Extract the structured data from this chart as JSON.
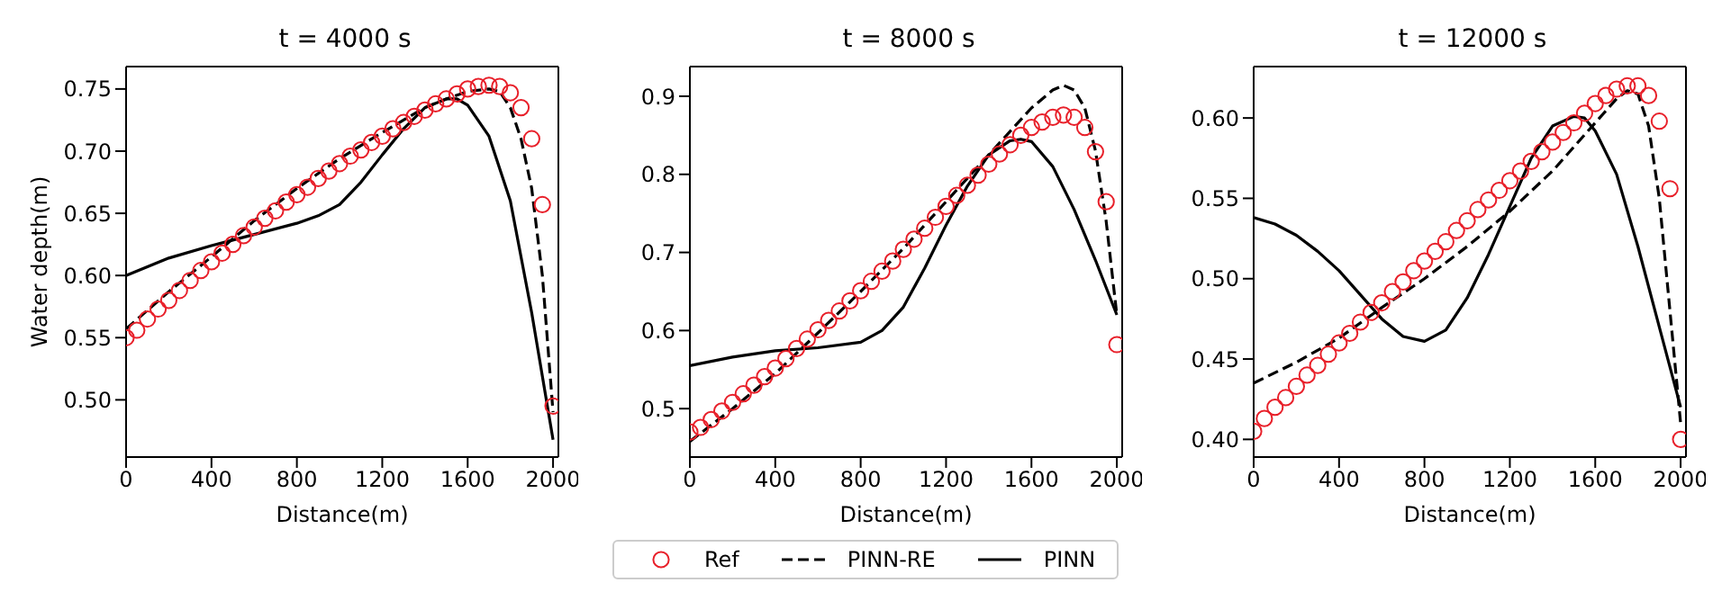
{
  "chart_data": [
    {
      "type": "line",
      "title": "t = 4000 s",
      "xlabel": "Distance(m)",
      "ylabel": "Water depth(m)",
      "xlim": [
        0,
        2025
      ],
      "xticks": [
        0,
        400,
        800,
        1200,
        1600,
        2000
      ],
      "ylim": [
        0.454,
        0.768
      ],
      "yticks": [
        {
          "value": 0.5,
          "label": "0.50"
        },
        {
          "value": 0.55,
          "label": "0.55"
        },
        {
          "value": 0.6,
          "label": "0.60"
        },
        {
          "value": 0.65,
          "label": "0.65"
        },
        {
          "value": 0.7,
          "label": "0.70"
        },
        {
          "value": 0.75,
          "label": "0.75"
        }
      ],
      "grid": false,
      "legend": "bottom",
      "series": [
        {
          "name": "Ref",
          "type": "scatter",
          "marker": "circle",
          "color": "#e8202a",
          "x": [
            0,
            50,
            100,
            150,
            200,
            250,
            300,
            350,
            400,
            450,
            500,
            550,
            600,
            650,
            700,
            750,
            800,
            850,
            900,
            950,
            1000,
            1050,
            1100,
            1150,
            1200,
            1250,
            1300,
            1350,
            1400,
            1450,
            1500,
            1550,
            1600,
            1650,
            1700,
            1750,
            1800,
            1850,
            1900,
            1950,
            2000
          ],
          "values": [
            0.55,
            0.556,
            0.565,
            0.573,
            0.58,
            0.588,
            0.596,
            0.604,
            0.611,
            0.618,
            0.625,
            0.632,
            0.639,
            0.646,
            0.652,
            0.659,
            0.665,
            0.671,
            0.678,
            0.684,
            0.69,
            0.696,
            0.701,
            0.707,
            0.712,
            0.718,
            0.723,
            0.728,
            0.733,
            0.738,
            0.742,
            0.746,
            0.75,
            0.752,
            0.753,
            0.752,
            0.747,
            0.735,
            0.71,
            0.657,
            0.495
          ]
        },
        {
          "name": "PINN-RE",
          "type": "line",
          "line_style": "dashed",
          "marker": "none",
          "color": "#000000",
          "x": [
            0,
            200,
            400,
            600,
            800,
            1000,
            1200,
            1400,
            1500,
            1600,
            1700,
            1750,
            1800,
            1850,
            1900,
            1950,
            2000
          ],
          "values": [
            0.557,
            0.587,
            0.615,
            0.644,
            0.67,
            0.694,
            0.715,
            0.735,
            0.742,
            0.748,
            0.75,
            0.748,
            0.735,
            0.71,
            0.67,
            0.6,
            0.49
          ]
        },
        {
          "name": "PINN",
          "type": "line",
          "line_style": "solid",
          "marker": "none",
          "color": "#000000",
          "x": [
            0,
            200,
            400,
            600,
            800,
            900,
            1000,
            1100,
            1200,
            1300,
            1400,
            1500,
            1550,
            1600,
            1700,
            1800,
            1900,
            2000
          ],
          "values": [
            0.6,
            0.614,
            0.624,
            0.633,
            0.642,
            0.648,
            0.657,
            0.675,
            0.697,
            0.718,
            0.735,
            0.742,
            0.742,
            0.737,
            0.712,
            0.66,
            0.57,
            0.468
          ]
        }
      ]
    },
    {
      "type": "line",
      "title": "t = 8000 s",
      "xlabel": "Distance(m)",
      "xlim": [
        0,
        2025
      ],
      "xticks": [
        0,
        400,
        800,
        1200,
        1600,
        2000
      ],
      "ylim": [
        0.438,
        0.938
      ],
      "yticks": [
        0.5,
        0.6,
        0.7,
        0.8,
        0.9
      ],
      "grid": false,
      "series": [
        {
          "type": "scatter",
          "marker": "circle",
          "color": "#e8202a",
          "x": [
            0,
            50,
            100,
            150,
            200,
            250,
            300,
            350,
            400,
            450,
            500,
            550,
            600,
            650,
            700,
            750,
            800,
            850,
            900,
            950,
            1000,
            1050,
            1100,
            1150,
            1200,
            1250,
            1300,
            1350,
            1400,
            1450,
            1500,
            1550,
            1600,
            1650,
            1700,
            1750,
            1800,
            1850,
            1900,
            1950,
            2000
          ],
          "values": [
            0.47,
            0.476,
            0.486,
            0.497,
            0.508,
            0.519,
            0.53,
            0.541,
            0.552,
            0.564,
            0.577,
            0.589,
            0.601,
            0.613,
            0.625,
            0.638,
            0.651,
            0.663,
            0.676,
            0.689,
            0.704,
            0.717,
            0.731,
            0.745,
            0.759,
            0.773,
            0.786,
            0.799,
            0.813,
            0.826,
            0.838,
            0.85,
            0.86,
            0.867,
            0.873,
            0.876,
            0.873,
            0.86,
            0.829,
            0.765,
            0.582
          ]
        },
        {
          "type": "line",
          "line_style": "dashed",
          "marker": "none",
          "color": "#000000",
          "x": [
            0,
            200,
            400,
            600,
            800,
            1000,
            1200,
            1400,
            1600,
            1700,
            1750,
            1800,
            1850,
            1900,
            1950,
            2000
          ],
          "values": [
            0.458,
            0.5,
            0.545,
            0.597,
            0.65,
            0.705,
            0.765,
            0.825,
            0.885,
            0.908,
            0.914,
            0.908,
            0.885,
            0.83,
            0.74,
            0.62
          ]
        },
        {
          "type": "line",
          "line_style": "solid",
          "marker": "none",
          "color": "#000000",
          "x": [
            0,
            200,
            400,
            600,
            800,
            900,
            1000,
            1100,
            1200,
            1300,
            1400,
            1500,
            1550,
            1600,
            1700,
            1800,
            1900,
            2000
          ],
          "values": [
            0.555,
            0.566,
            0.574,
            0.578,
            0.585,
            0.6,
            0.63,
            0.68,
            0.735,
            0.785,
            0.825,
            0.843,
            0.845,
            0.842,
            0.81,
            0.755,
            0.69,
            0.62
          ]
        }
      ]
    },
    {
      "type": "line",
      "title": "t = 12000 s",
      "xlabel": "Distance(m)",
      "xlim": [
        0,
        2025
      ],
      "xticks": [
        0,
        400,
        800,
        1200,
        1600,
        2000
      ],
      "ylim": [
        0.389,
        0.632
      ],
      "yticks": [
        {
          "value": 0.4,
          "label": "0.40"
        },
        {
          "value": 0.45,
          "label": "0.45"
        },
        {
          "value": 0.5,
          "label": "0.50"
        },
        {
          "value": 0.55,
          "label": "0.55"
        },
        {
          "value": 0.6,
          "label": "0.60"
        }
      ],
      "grid": false,
      "series": [
        {
          "type": "scatter",
          "marker": "circle",
          "color": "#e8202a",
          "x": [
            0,
            50,
            100,
            150,
            200,
            250,
            300,
            350,
            400,
            450,
            500,
            550,
            600,
            650,
            700,
            750,
            800,
            850,
            900,
            950,
            1000,
            1050,
            1100,
            1150,
            1200,
            1250,
            1300,
            1350,
            1400,
            1450,
            1500,
            1550,
            1600,
            1650,
            1700,
            1750,
            1800,
            1850,
            1900,
            1950,
            2000
          ],
          "values": [
            0.405,
            0.413,
            0.42,
            0.426,
            0.433,
            0.44,
            0.446,
            0.453,
            0.46,
            0.466,
            0.473,
            0.479,
            0.485,
            0.492,
            0.498,
            0.505,
            0.511,
            0.517,
            0.523,
            0.53,
            0.536,
            0.543,
            0.549,
            0.555,
            0.561,
            0.567,
            0.573,
            0.579,
            0.585,
            0.591,
            0.597,
            0.603,
            0.609,
            0.614,
            0.618,
            0.62,
            0.62,
            0.614,
            0.598,
            0.556,
            0.4
          ]
        },
        {
          "type": "line",
          "line_style": "dashed",
          "marker": "none",
          "color": "#000000",
          "x": [
            0,
            200,
            400,
            600,
            800,
            1000,
            1200,
            1400,
            1600,
            1700,
            1750,
            1800,
            1850,
            1900,
            1950,
            2000
          ],
          "values": [
            0.435,
            0.448,
            0.463,
            0.482,
            0.5,
            0.52,
            0.542,
            0.567,
            0.597,
            0.612,
            0.617,
            0.615,
            0.595,
            0.55,
            0.48,
            0.41
          ]
        },
        {
          "type": "line",
          "line_style": "solid",
          "marker": "none",
          "color": "#000000",
          "x": [
            0,
            100,
            200,
            300,
            400,
            500,
            600,
            700,
            800,
            900,
            1000,
            1100,
            1200,
            1300,
            1400,
            1500,
            1550,
            1600,
            1700,
            1800,
            1900,
            2000
          ],
          "values": [
            0.538,
            0.534,
            0.527,
            0.517,
            0.505,
            0.49,
            0.475,
            0.464,
            0.461,
            0.468,
            0.488,
            0.515,
            0.545,
            0.575,
            0.595,
            0.601,
            0.6,
            0.592,
            0.565,
            0.52,
            0.47,
            0.42
          ]
        }
      ]
    }
  ]
}
